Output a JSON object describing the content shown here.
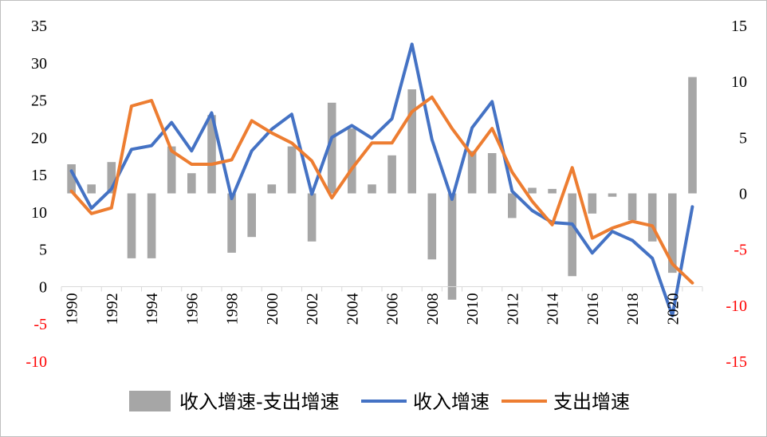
{
  "chart_data": {
    "type": "bar+line",
    "title": "",
    "x": [
      1990,
      1991,
      1992,
      1993,
      1994,
      1995,
      1996,
      1997,
      1998,
      1999,
      2000,
      2001,
      2002,
      2003,
      2004,
      2005,
      2006,
      2007,
      2008,
      2009,
      2010,
      2011,
      2012,
      2013,
      2014,
      2015,
      2016,
      2017,
      2018,
      2019,
      2020,
      2021
    ],
    "x_tick_labels": [
      "1990",
      "1992",
      "1994",
      "1996",
      "1998",
      "2000",
      "2002",
      "2004",
      "2006",
      "2008",
      "2010",
      "2012",
      "2014",
      "2016",
      "2018",
      "2020"
    ],
    "left_axis": {
      "ylim": [
        -10,
        35
      ],
      "ticks": [
        "-10",
        "-5",
        "0",
        "5",
        "10",
        "15",
        "20",
        "25",
        "30",
        "35"
      ]
    },
    "right_axis": {
      "ylim": [
        -15,
        15
      ],
      "ticks": [
        "-15",
        "-10",
        "-5",
        "0",
        "5",
        "10",
        "15"
      ]
    },
    "negative_tick_color": "#ff0000",
    "series": [
      {
        "name": "收入增速-支出增速",
        "type": "bar",
        "axis": "right",
        "color": "#a6a6a6",
        "values": [
          2.6,
          0.8,
          2.8,
          -5.8,
          -5.8,
          4.2,
          1.8,
          7.0,
          -5.3,
          -3.9,
          0.8,
          4.2,
          -4.3,
          8.1,
          5.8,
          0.8,
          3.4,
          9.3,
          -5.9,
          -9.5,
          3.8,
          3.6,
          -2.2,
          0.5,
          0.4,
          -7.4,
          -1.8,
          -0.3,
          -2.4,
          -4.3,
          -7.1,
          10.4
        ]
      },
      {
        "name": "收入增速",
        "type": "line",
        "axis": "left",
        "color": "#4472c4",
        "values": [
          15.5,
          10.5,
          13.1,
          18.4,
          18.9,
          22.0,
          18.2,
          23.3,
          11.8,
          18.2,
          21.1,
          23.1,
          12.4,
          20.0,
          21.6,
          19.9,
          22.5,
          32.5,
          19.7,
          11.7,
          21.3,
          24.8,
          12.8,
          10.2,
          8.6,
          8.4,
          4.5,
          7.4,
          6.2,
          3.8,
          -3.9,
          10.7
        ]
      },
      {
        "name": "支出增速",
        "type": "line",
        "axis": "right",
        "color": "#ed7d31",
        "values": [
          0.2,
          -1.8,
          -1.3,
          7.8,
          8.3,
          3.8,
          2.6,
          2.6,
          3.0,
          6.5,
          5.4,
          4.5,
          2.9,
          -0.4,
          2.2,
          4.5,
          4.5,
          7.3,
          8.6,
          5.8,
          3.4,
          5.8,
          1.9,
          -0.7,
          -2.8,
          2.3,
          -4.0,
          -3.1,
          -2.5,
          -2.9,
          -6.3,
          -8.0
        ]
      }
    ],
    "legend": {
      "placement": "bottom",
      "items": [
        "收入增速-支出增速",
        "收入增速",
        "支出增速"
      ]
    },
    "grid": false
  }
}
